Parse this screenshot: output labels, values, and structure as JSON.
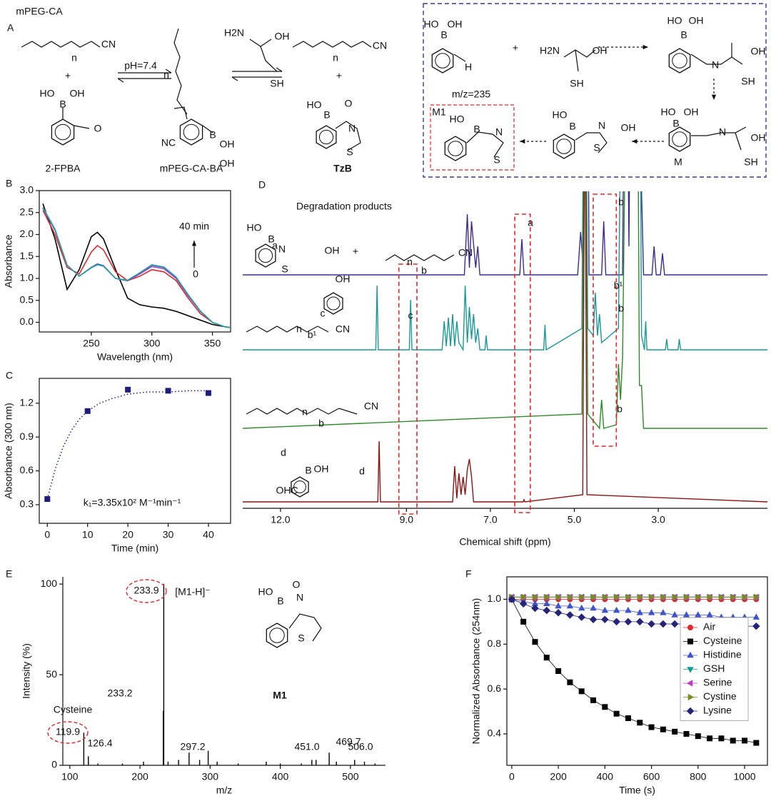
{
  "panels": [
    "A",
    "B",
    "C",
    "D",
    "E",
    "F"
  ],
  "scheme": {
    "labels": [
      "mPEG-CA",
      "pH=7.4",
      "2-FPBA",
      "mPEG-CA-BA",
      "TzB",
      "m/z=235",
      "M1",
      "M",
      "+",
      "+",
      "+",
      "CN",
      "n",
      "HO",
      "OH",
      "B",
      "O",
      "H2N",
      "OH",
      "SH",
      "NC",
      "n",
      "OH",
      "B",
      "OH",
      "CN",
      "n",
      "HO",
      "B",
      "O",
      "N",
      "S",
      "HO",
      "OH",
      "B",
      "H",
      "H2N",
      "OH",
      "SH",
      "HO",
      "OH",
      "B",
      "N",
      "OH",
      "SH",
      "HO",
      "OH",
      "B",
      "N",
      "OH",
      "SH",
      "HO",
      "B",
      "N",
      "OH",
      "S",
      "HO",
      "B",
      "N",
      "S"
    ]
  },
  "chart_data": [
    {
      "type": "line",
      "xlabel": "Wavelength (nm)",
      "ylabel": "Absorbance",
      "annotations": [
        "40 min",
        "0"
      ],
      "x": [
        210,
        220,
        230,
        240,
        250,
        255,
        260,
        270,
        280,
        290,
        300,
        310,
        320,
        330,
        340,
        350,
        360,
        365
      ],
      "series": [
        {
          "color": "#000000",
          "values": [
            2.7,
            1.9,
            0.75,
            1.2,
            1.95,
            2.05,
            1.9,
            1.2,
            0.55,
            0.4,
            0.35,
            0.32,
            0.25,
            0.15,
            0.05,
            -0.05,
            -0.1,
            -0.12
          ]
        },
        {
          "color": "#e0282e",
          "values": [
            2.55,
            2.0,
            1.25,
            1.1,
            1.6,
            1.75,
            1.65,
            1.15,
            0.95,
            1.05,
            1.2,
            1.15,
            0.95,
            0.55,
            0.2,
            0.0,
            -0.1,
            -0.12
          ]
        },
        {
          "color": "#b04ac0",
          "values": [
            2.6,
            2.1,
            1.3,
            1.05,
            1.25,
            1.32,
            1.28,
            1.0,
            0.95,
            1.1,
            1.27,
            1.22,
            1.0,
            0.6,
            0.25,
            0.0,
            -0.1,
            -0.12
          ]
        },
        {
          "color": "#3f55c8",
          "values": [
            2.6,
            2.1,
            1.3,
            1.05,
            1.25,
            1.33,
            1.29,
            1.0,
            0.95,
            1.12,
            1.3,
            1.25,
            1.02,
            0.62,
            0.25,
            0.0,
            -0.1,
            -0.12
          ]
        },
        {
          "color": "#2aa3a0",
          "values": [
            2.62,
            2.12,
            1.3,
            1.05,
            1.24,
            1.31,
            1.28,
            1.0,
            0.96,
            1.13,
            1.31,
            1.26,
            1.03,
            0.63,
            0.26,
            0.0,
            -0.1,
            -0.12
          ]
        }
      ],
      "xlim": [
        207,
        365
      ],
      "xticks": [
        250,
        300,
        350
      ],
      "ylim": [
        -0.22,
        3.0
      ],
      "yticks": [
        {
          "value": 0,
          "label": "0.0"
        },
        0.5,
        {
          "value": 1,
          "label": "1.0"
        },
        1.5,
        {
          "value": 2,
          "label": "2.0"
        },
        2.5,
        {
          "value": 3,
          "label": "3.0"
        }
      ]
    },
    {
      "type": "scatter",
      "xlabel": "Time (min)",
      "ylabel": "Absorbance (300 nm)",
      "annotations": [
        "k₁=3.35x10²  M⁻¹min⁻¹"
      ],
      "series": [
        {
          "color": "#1f1f7a",
          "marker": "square",
          "x": [
            0,
            10,
            20,
            30,
            40
          ],
          "values": [
            0.35,
            1.13,
            1.32,
            1.31,
            1.29
          ]
        },
        {
          "color": "#1f1f7a",
          "linestyle": "dotted",
          "x": [
            0,
            2,
            4,
            6,
            8,
            10,
            13,
            16,
            20,
            25,
            30,
            35,
            40
          ],
          "values": [
            0.35,
            0.62,
            0.82,
            0.96,
            1.06,
            1.13,
            1.2,
            1.24,
            1.28,
            1.3,
            1.3,
            1.31,
            1.31
          ]
        }
      ],
      "xlim": [
        -2,
        45.5
      ],
      "xticks": [
        0,
        10,
        20,
        30,
        40
      ],
      "ylim": [
        0.135,
        1.42
      ],
      "yticks": [
        0.3,
        0.6,
        0.9,
        1.2
      ]
    },
    {
      "type": "spectrum",
      "xlabel": "Chemical shift (ppm)",
      "annotations": [
        "Degradation products",
        "a",
        "b",
        "c",
        "b¹",
        "b",
        "b",
        "d",
        "d",
        "HO",
        "B",
        "N",
        "S",
        "OH",
        "+",
        "n",
        "b",
        "CN",
        "n",
        "b¹",
        "CN",
        "c",
        "OH",
        "n",
        "b",
        "CN",
        "OHC",
        "OH",
        "B",
        "a"
      ],
      "series": [
        {
          "color": "#3b2d8f",
          "x": [
            12.9,
            7.62,
            7.55,
            7.5,
            7.45,
            7.35,
            7.3,
            7.25,
            6.3,
            6.25,
            6.2,
            4.92,
            4.85,
            4.8,
            4.75,
            4.7,
            4.65,
            4.35,
            4.3,
            4.25,
            3.85,
            3.78,
            3.7,
            3.62,
            3.55,
            3.5,
            3.45,
            3.4,
            3.35,
            3.15,
            3.1,
            3.05,
            2.95,
            2.9,
            2.85,
            0.4
          ],
          "values": [
            0,
            0,
            85,
            10,
            75,
            10,
            40,
            0,
            0,
            50,
            0,
            0,
            60,
            20,
            600,
            600,
            0,
            0,
            75,
            0,
            0,
            600,
            40,
            600,
            600,
            600,
            600,
            120,
            0,
            0,
            40,
            0,
            0,
            30,
            0,
            0
          ]
        },
        {
          "color": "#1a9a96",
          "x": [
            12.9,
            9.73,
            9.7,
            9.67,
            8.93,
            8.9,
            8.87,
            8.15,
            8.1,
            8.05,
            8.0,
            7.95,
            7.9,
            7.85,
            7.8,
            7.75,
            7.65,
            7.6,
            7.55,
            7.5,
            7.45,
            7.4,
            7.35,
            7.3,
            7.25,
            7.13,
            7.1,
            7.07,
            5.73,
            5.7,
            5.67,
            4.82,
            4.75,
            4.68,
            4.55,
            4.5,
            4.45,
            4.4,
            4.35,
            3.95,
            3.85,
            3.75,
            3.65,
            3.55,
            3.45,
            3.4,
            3.33,
            3.3,
            3.27,
            2.83,
            2.8,
            2.77,
            2.53,
            2.5,
            2.47,
            0.4
          ],
          "values": [
            0,
            0,
            90,
            0,
            0,
            70,
            0,
            0,
            40,
            5,
            45,
            5,
            50,
            5,
            40,
            10,
            0,
            90,
            10,
            60,
            15,
            50,
            10,
            30,
            0,
            0,
            20,
            0,
            0,
            35,
            0,
            30,
            600,
            30,
            20,
            80,
            20,
            50,
            10,
            30,
            600,
            600,
            600,
            600,
            600,
            20,
            0,
            40,
            0,
            0,
            15,
            0,
            0,
            15,
            0,
            0
          ]
        },
        {
          "color": "#2f8a2a",
          "x": [
            12.9,
            4.82,
            4.75,
            4.68,
            4.4,
            4.35,
            4.3,
            4.0,
            3.95,
            3.9,
            3.85,
            3.75,
            3.65,
            3.6,
            3.5,
            3.45,
            3.4,
            3.35,
            0.4
          ],
          "values": [
            0,
            20,
            600,
            20,
            0,
            40,
            0,
            5,
            90,
            40,
            100,
            600,
            600,
            600,
            600,
            60,
            60,
            0,
            0
          ]
        },
        {
          "color": "#8b1414",
          "x": [
            12.9,
            9.68,
            9.65,
            9.62,
            7.9,
            7.85,
            7.8,
            7.75,
            7.7,
            7.65,
            7.6,
            7.55,
            7.5,
            7.45,
            7.4,
            6.22,
            6.2,
            6.18,
            4.8,
            4.75,
            4.7,
            0.4
          ],
          "values": [
            0,
            0,
            85,
            0,
            0,
            50,
            5,
            40,
            10,
            35,
            10,
            45,
            60,
            35,
            0,
            0,
            3,
            0,
            10,
            600,
            10,
            0
          ]
        }
      ],
      "xlim": [
        12.9,
        0.4
      ],
      "xticks": [
        {
          "value": 12,
          "label": "12.0"
        },
        {
          "value": 9,
          "label": "9.0"
        },
        {
          "value": 7,
          "label": "7.0"
        },
        {
          "value": 5,
          "label": "5.0"
        },
        {
          "value": 3,
          "label": "3.0"
        }
      ]
    },
    {
      "type": "bar",
      "xlabel": "m/z",
      "ylabel": "Intensity (%)",
      "annotations": [
        "[M1-H]⁻",
        "Cysteine",
        "M1",
        "HO",
        "B",
        "N",
        "S",
        "O"
      ],
      "series": [
        {
          "color": "#000000",
          "x": [
            119.9,
            126.4,
            233.2,
            233.9,
            297.2,
            451.0,
            469.7,
            506.0
          ],
          "x_labels": [
            "119.9",
            "126.4",
            "233.2",
            "233.9",
            "297.2",
            "451.0",
            "469.7",
            "506.0"
          ],
          "values": [
            18,
            5,
            30,
            100,
            8,
            3,
            7,
            3
          ]
        },
        {
          "color": "#000000",
          "x": [
            140,
            175,
            205,
            240,
            255,
            270,
            285,
            310,
            340,
            380,
            400,
            430,
            445,
            480,
            520,
            535
          ],
          "values": [
            1,
            1,
            2,
            2,
            3,
            7,
            3,
            2,
            1,
            2,
            1,
            1,
            3,
            2,
            2,
            1
          ]
        }
      ],
      "xlim": [
        90,
        550
      ],
      "xticks": [
        100,
        200,
        300,
        400,
        500
      ],
      "ylim": [
        0,
        104
      ],
      "yticks": [
        0,
        50,
        100
      ]
    },
    {
      "type": "line",
      "xlabel": "Time (s)",
      "ylabel": "Normalized Absorbance (254nm)",
      "legend": "center right",
      "x": [
        0,
        50,
        100,
        150,
        200,
        250,
        300,
        350,
        400,
        450,
        500,
        550,
        600,
        650,
        700,
        750,
        800,
        850,
        900,
        950,
        1000,
        1050
      ],
      "series": [
        {
          "name": "Air",
          "color": "#e0282e",
          "marker": "circle",
          "values": [
            1.0,
            1.0,
            1.0,
            1.0,
            1.0,
            1.0,
            1.0,
            1.0,
            1.0,
            1.0,
            1.0,
            1.0,
            1.0,
            1.0,
            1.0,
            1.0,
            1.0,
            1.0,
            1.0,
            1.0,
            1.0,
            1.0
          ]
        },
        {
          "name": "Cysteine",
          "color": "#000000",
          "marker": "square",
          "values": [
            1.0,
            0.9,
            0.81,
            0.74,
            0.68,
            0.63,
            0.59,
            0.55,
            0.52,
            0.49,
            0.47,
            0.45,
            0.43,
            0.42,
            0.41,
            0.4,
            0.39,
            0.38,
            0.38,
            0.37,
            0.37,
            0.36
          ]
        },
        {
          "name": "Histidine",
          "color": "#3f55c8",
          "marker": "triangle-up",
          "values": [
            1.0,
            0.99,
            0.98,
            0.98,
            0.97,
            0.97,
            0.96,
            0.96,
            0.95,
            0.95,
            0.95,
            0.94,
            0.94,
            0.94,
            0.93,
            0.93,
            0.93,
            0.93,
            0.92,
            0.92,
            0.92,
            0.92
          ]
        },
        {
          "name": "GSH",
          "color": "#1a9a96",
          "marker": "triangle-down",
          "values": [
            1.01,
            1.01,
            1.01,
            1.01,
            1.01,
            1.01,
            1.01,
            1.01,
            1.01,
            1.01,
            1.01,
            1.01,
            1.01,
            1.01,
            1.01,
            1.01,
            1.01,
            1.01,
            1.01,
            1.01,
            1.01,
            1.01
          ]
        },
        {
          "name": "Serine",
          "color": "#c03fc0",
          "marker": "triangle-left",
          "values": [
            1.01,
            1.01,
            1.01,
            1.01,
            1.01,
            1.01,
            1.01,
            1.01,
            1.01,
            1.01,
            1.01,
            1.01,
            1.01,
            1.01,
            1.01,
            1.01,
            1.01,
            1.01,
            1.01,
            1.01,
            1.01,
            1.01
          ]
        },
        {
          "name": "Cystine",
          "color": "#7c8a22",
          "marker": "triangle-right",
          "values": [
            1.01,
            1.01,
            1.01,
            1.01,
            1.01,
            1.01,
            1.01,
            1.01,
            1.01,
            1.01,
            1.01,
            1.01,
            1.01,
            1.01,
            1.01,
            1.01,
            1.01,
            1.01,
            1.01,
            1.01,
            1.01,
            1.01
          ]
        },
        {
          "name": "Lysine",
          "color": "#24247a",
          "marker": "diamond",
          "values": [
            1.0,
            0.98,
            0.96,
            0.95,
            0.94,
            0.93,
            0.92,
            0.91,
            0.91,
            0.9,
            0.9,
            0.9,
            0.89,
            0.89,
            0.89,
            0.89,
            0.88,
            0.88,
            0.88,
            0.88,
            0.88,
            0.88
          ]
        }
      ],
      "xlim": [
        -21,
        1098
      ],
      "xticks": [
        0,
        200,
        400,
        600,
        800,
        1000
      ],
      "ylim": [
        0.26,
        1.1
      ],
      "yticks": [
        0.4,
        0.6,
        0.8,
        {
          "value": 1,
          "label": "1.0"
        }
      ]
    }
  ]
}
